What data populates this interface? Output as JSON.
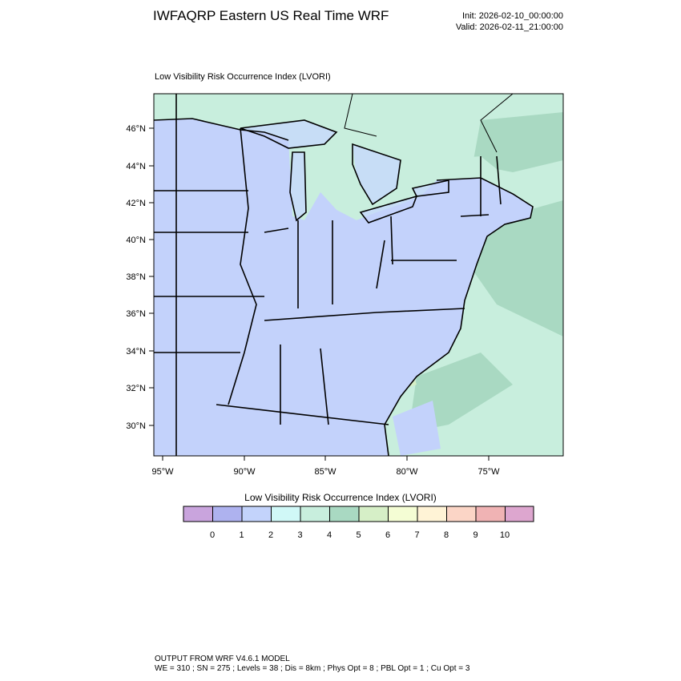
{
  "header": {
    "title": "IWFAQRP Eastern US Real Time WRF",
    "init": "Init: 2026-02-10_00:00:00",
    "valid": "Valid: 2026-02-11_21:00:00"
  },
  "plot": {
    "variable_title": "Low Visibility Risk Occurrence Index   (LVORI)",
    "lat_labels": [
      "46°N",
      "44°N",
      "42°N",
      "40°N",
      "38°N",
      "36°N",
      "34°N",
      "32°N",
      "30°N"
    ],
    "lon_labels": [
      "95°W",
      "90°W",
      "85°W",
      "80°W",
      "75°W"
    ],
    "colors": {
      "land_low": "#c3d2fb",
      "water": "#c7ddf6",
      "ocean_mid": "#c8eedd",
      "ocean_hi": "#a9d9c2",
      "green_mid": "#d6efc7"
    }
  },
  "colorbar": {
    "title": "Low Visibility Risk Occurrence Index  (LVORI)",
    "colors": [
      "#c9a4dd",
      "#aeb2ef",
      "#c3d3fb",
      "#d0f8f7",
      "#c8eedd",
      "#a9d9c2",
      "#d6efc7",
      "#f4fdd4",
      "#fff3d6",
      "#fbd5c6",
      "#f0b3b4",
      "#dda6cf"
    ],
    "labels": [
      "0",
      "1",
      "2",
      "3",
      "4",
      "5",
      "6",
      "7",
      "8",
      "9",
      "10"
    ]
  },
  "footer": {
    "line1": "OUTPUT FROM WRF V4.6.1 MODEL",
    "line2": "WE = 310 ; SN = 275 ; Levels = 38 ; Dis = 8km ; Phys Opt = 8 ; PBL Opt = 1 ; Cu Opt = 3"
  }
}
